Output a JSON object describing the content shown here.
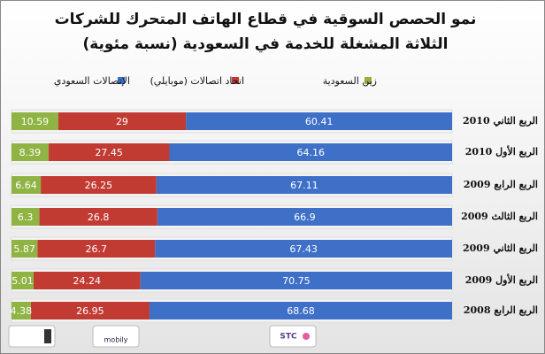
{
  "chart_data": {
    "type": "stacked-barh",
    "title": [
      "نمو الحصص السوقية في قطاع الهاتف المتحرك للشركات",
      "الثلاثة المشغلة للخدمة في السعودية (نسبة مئوية)"
    ],
    "categories": [
      "الربع الثاني 2010",
      "الربع الأول 2010",
      "الربع الرابع 2009",
      "الربع الثالث 2009",
      "الربع الثاني 2009",
      "الربع الأول 2009",
      "الربع الرابع 2008"
    ],
    "series": [
      {
        "name": "الإتصالات السعودي",
        "color": "#3e70c8",
        "values": [
          60.41,
          64.16,
          67.11,
          66.9,
          67.43,
          70.75,
          68.68
        ]
      },
      {
        "name": "اتحاد اتصالات (موبايلي)",
        "color": "#c23b33",
        "values": [
          29,
          27.45,
          26.25,
          26.8,
          26.7,
          24.24,
          26.95
        ]
      },
      {
        "name": "زين السعودية",
        "color": "#8fb443",
        "values": [
          10.59,
          8.39,
          6.64,
          6.3,
          5.87,
          5.01,
          4.38
        ]
      }
    ],
    "xlim": [
      0,
      100
    ],
    "direction": "right-to-left"
  },
  "logos": [
    "mobily",
    "STC"
  ]
}
